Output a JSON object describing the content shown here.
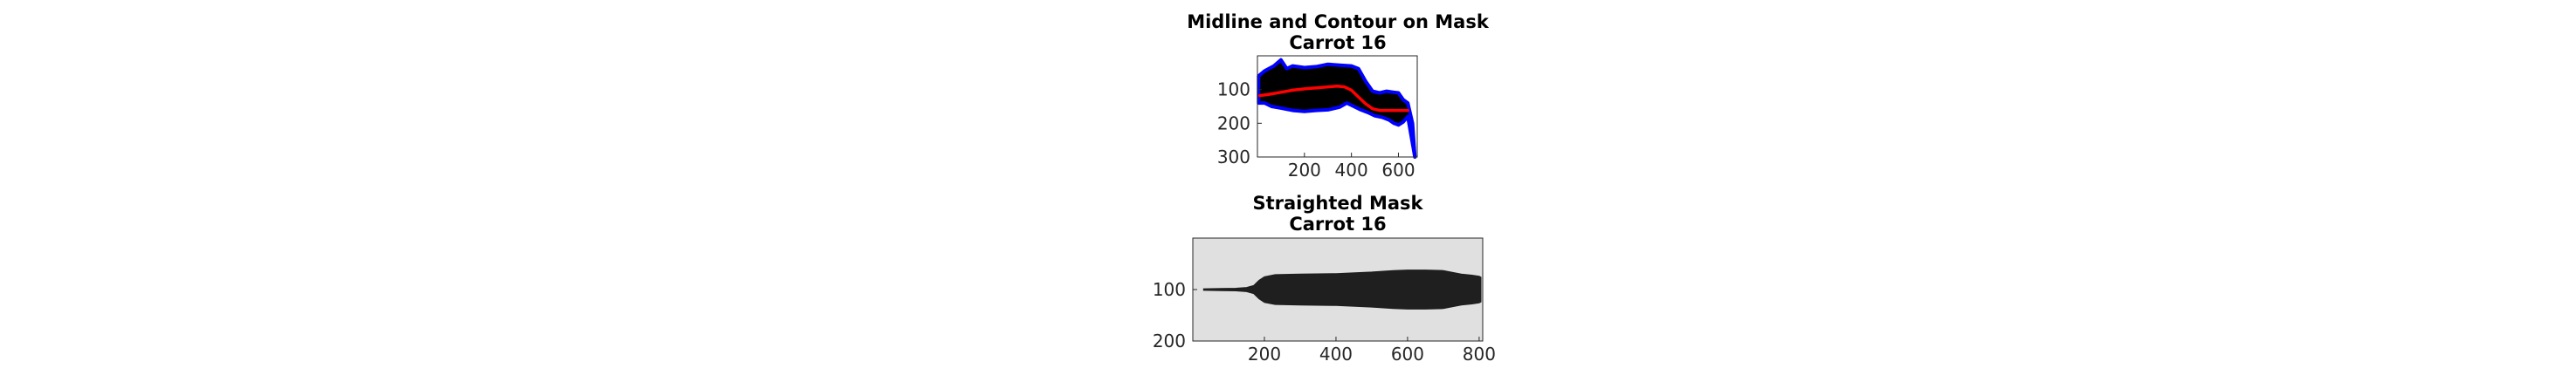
{
  "chart_data": [
    {
      "type": "image",
      "title": "Midline and Contour on Mask",
      "subtitle": "Carrot 16",
      "xticks": [
        200,
        400,
        600
      ],
      "yticks": [
        100,
        200,
        300
      ],
      "xlim": [
        0,
        680
      ],
      "ylim": [
        0,
        300
      ],
      "y_reversed": true,
      "series": [
        {
          "role": "midline",
          "color": "#ff0000",
          "x": [
            10,
            50,
            100,
            150,
            200,
            250,
            300,
            340,
            370,
            400,
            430,
            460,
            490,
            520,
            550,
            580,
            610,
            640
          ],
          "y": [
            118,
            114,
            108,
            102,
            98,
            95,
            92,
            90,
            92,
            102,
            122,
            142,
            157,
            162,
            162,
            162,
            162,
            162
          ]
        },
        {
          "role": "contour",
          "color": "#0000ff",
          "x": [
            5,
            30,
            70,
            100,
            125,
            150,
            200,
            250,
            300,
            350,
            400,
            430,
            460,
            490,
            520,
            550,
            580,
            600,
            620,
            640,
            660,
            670,
            670,
            640,
            620,
            600,
            580,
            560,
            530,
            500,
            470,
            440,
            410,
            380,
            350,
            300,
            250,
            200,
            150,
            100,
            60,
            30,
            5
          ],
          "y": [
            60,
            45,
            30,
            12,
            38,
            30,
            35,
            32,
            25,
            28,
            30,
            38,
            75,
            105,
            110,
            105,
            108,
            110,
            130,
            140,
            200,
            300,
            300,
            180,
            196,
            205,
            200,
            190,
            182,
            178,
            168,
            160,
            150,
            140,
            152,
            160,
            162,
            165,
            162,
            155,
            150,
            140,
            140
          ]
        }
      ]
    },
    {
      "type": "image",
      "title": "Straighted Mask",
      "subtitle": "Carrot 16",
      "xticks": [
        200,
        400,
        600,
        800
      ],
      "yticks": [
        100,
        200
      ],
      "xlim": [
        0,
        810
      ],
      "ylim": [
        0,
        200
      ],
      "y_reversed": true,
      "background_color": "#e0e0e0",
      "mask_color": "#1f1f1f",
      "mask_profile": {
        "x": [
          30,
          120,
          150,
          170,
          185,
          200,
          230,
          300,
          400,
          500,
          560,
          600,
          650,
          700,
          750,
          780,
          800,
          805
        ],
        "half_width": [
          1.5,
          2.5,
          4,
          8,
          18,
          25,
          29,
          30,
          31,
          34,
          37,
          38,
          38,
          37,
          30,
          28,
          26,
          24
        ]
      }
    }
  ]
}
